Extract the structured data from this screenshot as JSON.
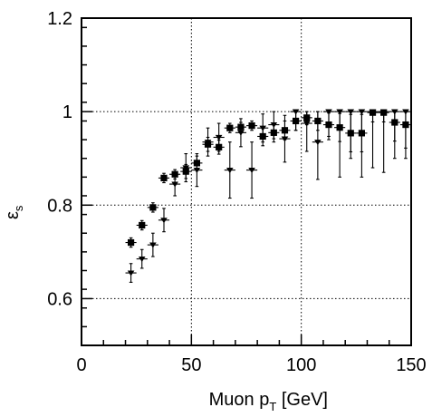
{
  "chart_data": {
    "type": "scatter",
    "title": "",
    "xlabel": "Muon p",
    "xlabel_sub": "T",
    "xlabel_unit": " [GeV]",
    "ylabel": "ε",
    "ylabel_sub": "s",
    "xlim": [
      0,
      150
    ],
    "ylim": [
      0.5,
      1.2
    ],
    "x_ticks": [
      0,
      50,
      100,
      150
    ],
    "x_tick_labels": [
      "0",
      "50",
      "100",
      "150"
    ],
    "y_ticks": [
      0.6,
      0.8,
      1.0,
      1.2
    ],
    "y_tick_labels": [
      "0.6",
      "0.8",
      "1",
      "1.2"
    ],
    "grid": true,
    "series": [
      {
        "marker": "square",
        "points": [
          {
            "x": 22.5,
            "y": 0.72,
            "xerr": 2.5,
            "ylo": 0.01,
            "yhi": 0.01
          },
          {
            "x": 27.5,
            "y": 0.757,
            "xerr": 2.5,
            "ylo": 0.01,
            "yhi": 0.01
          },
          {
            "x": 32.5,
            "y": 0.795,
            "xerr": 2.5,
            "ylo": 0.01,
            "yhi": 0.01
          },
          {
            "x": 37.5,
            "y": 0.858,
            "xerr": 2.5,
            "ylo": 0.01,
            "yhi": 0.01
          },
          {
            "x": 42.5,
            "y": 0.866,
            "xerr": 2.5,
            "ylo": 0.01,
            "yhi": 0.01
          },
          {
            "x": 47.5,
            "y": 0.872,
            "xerr": 2.5,
            "ylo": 0.015,
            "yhi": 0.015
          },
          {
            "x": 52.5,
            "y": 0.89,
            "xerr": 2.5,
            "ylo": 0.015,
            "yhi": 0.015
          },
          {
            "x": 57.5,
            "y": 0.93,
            "xerr": 2.5,
            "ylo": 0.015,
            "yhi": 0.015
          },
          {
            "x": 62.5,
            "y": 0.924,
            "xerr": 2.5,
            "ylo": 0.015,
            "yhi": 0.015
          },
          {
            "x": 67.5,
            "y": 0.965,
            "xerr": 2.5,
            "ylo": 0.01,
            "yhi": 0.01
          },
          {
            "x": 72.5,
            "y": 0.967,
            "xerr": 2.5,
            "ylo": 0.01,
            "yhi": 0.01
          },
          {
            "x": 77.5,
            "y": 0.97,
            "xerr": 2.5,
            "ylo": 0.01,
            "yhi": 0.01
          },
          {
            "x": 82.5,
            "y": 0.947,
            "xerr": 2.5,
            "ylo": 0.02,
            "yhi": 0.02
          },
          {
            "x": 87.5,
            "y": 0.955,
            "xerr": 2.5,
            "ylo": 0.02,
            "yhi": 0.02
          },
          {
            "x": 92.5,
            "y": 0.96,
            "xerr": 2.5,
            "ylo": 0.02,
            "yhi": 0.02
          },
          {
            "x": 97.5,
            "y": 0.98,
            "xerr": 2.5,
            "ylo": 0.02,
            "yhi": 0.02
          },
          {
            "x": 102.5,
            "y": 0.987,
            "xerr": 2.5,
            "ylo": 0.015,
            "yhi": 0.013
          },
          {
            "x": 107.5,
            "y": 0.98,
            "xerr": 2.5,
            "ylo": 0.02,
            "yhi": 0.02
          },
          {
            "x": 112.5,
            "y": 0.972,
            "xerr": 2.5,
            "ylo": 0.025,
            "yhi": 0.025
          },
          {
            "x": 117.5,
            "y": 0.966,
            "xerr": 2.5,
            "ylo": 0.03,
            "yhi": 0.03
          },
          {
            "x": 122.5,
            "y": 0.954,
            "xerr": 2.5,
            "ylo": 0.04,
            "yhi": 0.04
          },
          {
            "x": 127.5,
            "y": 0.954,
            "xerr": 2.5,
            "ylo": 0.04,
            "yhi": 0.04
          },
          {
            "x": 132.5,
            "y": 0.998,
            "xerr": 2.5,
            "ylo": 0.02,
            "yhi": 0.002
          },
          {
            "x": 137.5,
            "y": 0.998,
            "xerr": 2.5,
            "ylo": 0.02,
            "yhi": 0.002
          },
          {
            "x": 142.5,
            "y": 0.977,
            "xerr": 2.5,
            "ylo": 0.04,
            "yhi": 0.023
          },
          {
            "x": 147.5,
            "y": 0.972,
            "xerr": 2.5,
            "ylo": 0.05,
            "yhi": 0.028
          }
        ]
      },
      {
        "marker": "triangle-down",
        "points": [
          {
            "x": 22.5,
            "y": 0.655,
            "xerr": 2.5,
            "ylo": 0.02,
            "yhi": 0.02
          },
          {
            "x": 27.5,
            "y": 0.685,
            "xerr": 2.5,
            "ylo": 0.02,
            "yhi": 0.02
          },
          {
            "x": 32.5,
            "y": 0.715,
            "xerr": 2.5,
            "ylo": 0.025,
            "yhi": 0.025
          },
          {
            "x": 37.5,
            "y": 0.768,
            "xerr": 2.5,
            "ylo": 0.025,
            "yhi": 0.025
          },
          {
            "x": 42.5,
            "y": 0.845,
            "xerr": 2.5,
            "ylo": 0.025,
            "yhi": 0.025
          },
          {
            "x": 47.5,
            "y": 0.88,
            "xerr": 2.5,
            "ylo": 0.03,
            "yhi": 0.03
          },
          {
            "x": 52.5,
            "y": 0.875,
            "xerr": 2.5,
            "ylo": 0.035,
            "yhi": 0.035
          },
          {
            "x": 57.5,
            "y": 0.935,
            "xerr": 2.5,
            "ylo": 0.03,
            "yhi": 0.03
          },
          {
            "x": 62.5,
            "y": 0.945,
            "xerr": 2.5,
            "ylo": 0.03,
            "yhi": 0.03
          },
          {
            "x": 67.5,
            "y": 0.875,
            "xerr": 2.5,
            "ylo": 0.06,
            "yhi": 0.06
          },
          {
            "x": 72.5,
            "y": 0.955,
            "xerr": 2.5,
            "ylo": 0.03,
            "yhi": 0.03
          },
          {
            "x": 77.5,
            "y": 0.875,
            "xerr": 2.5,
            "ylo": 0.06,
            "yhi": 0.06
          },
          {
            "x": 82.5,
            "y": 0.965,
            "xerr": 2.5,
            "ylo": 0.03,
            "yhi": 0.03
          },
          {
            "x": 87.5,
            "y": 0.972,
            "xerr": 2.5,
            "ylo": 0.03,
            "yhi": 0.028
          },
          {
            "x": 92.5,
            "y": 0.942,
            "xerr": 2.5,
            "ylo": 0.05,
            "yhi": 0.05
          },
          {
            "x": 97.5,
            "y": 1.0,
            "xerr": 2.5,
            "ylo": 0.04,
            "yhi": 0.0
          },
          {
            "x": 102.5,
            "y": 0.975,
            "xerr": 2.5,
            "ylo": 0.06,
            "yhi": 0.025
          },
          {
            "x": 107.5,
            "y": 0.935,
            "xerr": 2.5,
            "ylo": 0.08,
            "yhi": 0.065
          },
          {
            "x": 112.5,
            "y": 1.0,
            "xerr": 2.5,
            "ylo": 0.06,
            "yhi": 0.0
          },
          {
            "x": 117.5,
            "y": 1.0,
            "xerr": 2.5,
            "ylo": 0.14,
            "yhi": 0.0
          },
          {
            "x": 122.5,
            "y": 1.0,
            "xerr": 2.5,
            "ylo": 0.1,
            "yhi": 0.0
          },
          {
            "x": 127.5,
            "y": 1.0,
            "xerr": 2.5,
            "ylo": 0.14,
            "yhi": 0.0
          },
          {
            "x": 132.5,
            "y": 1.0,
            "xerr": 2.5,
            "ylo": 0.12,
            "yhi": 0.0
          },
          {
            "x": 137.5,
            "y": 1.0,
            "xerr": 2.5,
            "ylo": 0.13,
            "yhi": 0.0
          },
          {
            "x": 142.5,
            "y": 1.0,
            "xerr": 2.5,
            "ylo": 0.1,
            "yhi": 0.0
          },
          {
            "x": 147.5,
            "y": 1.0,
            "xerr": 2.5,
            "ylo": 0.1,
            "yhi": 0.0
          }
        ]
      }
    ]
  }
}
